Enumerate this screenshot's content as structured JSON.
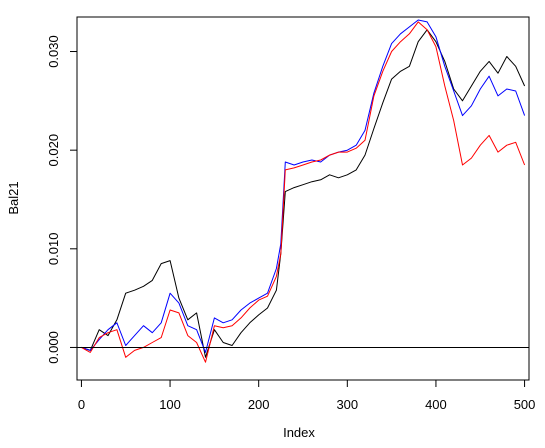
{
  "chart_data": {
    "type": "line",
    "title": "",
    "xlabel": "Index",
    "ylabel": "Bal21",
    "xlim": [
      -5,
      505
    ],
    "ylim": [
      -0.0033,
      0.0335
    ],
    "xticks": [
      0,
      100,
      200,
      300,
      400,
      500
    ],
    "xtick_labels": [
      "0",
      "100",
      "200",
      "300",
      "400",
      "500"
    ],
    "yticks": [
      0.0,
      0.01,
      0.02,
      0.03
    ],
    "ytick_labels": [
      "0.000",
      "0.010",
      "0.020",
      "0.030"
    ],
    "grid": false,
    "legend": "none",
    "reference_line": {
      "y": 0.0,
      "color": "#000000"
    },
    "x": [
      0,
      10,
      20,
      30,
      40,
      50,
      60,
      70,
      80,
      90,
      100,
      110,
      120,
      130,
      140,
      150,
      160,
      170,
      180,
      190,
      200,
      210,
      220,
      225,
      230,
      240,
      250,
      260,
      270,
      280,
      290,
      300,
      310,
      320,
      330,
      340,
      350,
      360,
      370,
      380,
      390,
      400,
      410,
      420,
      430,
      440,
      450,
      460,
      470,
      480,
      490,
      500
    ],
    "series": [
      {
        "color": "#000000",
        "values": [
          0.0,
          -0.0003,
          0.0018,
          0.0012,
          0.0028,
          0.0055,
          0.0058,
          0.0062,
          0.0068,
          0.0085,
          0.0088,
          0.005,
          0.0028,
          0.0035,
          -0.001,
          0.0018,
          0.0005,
          0.0002,
          0.0015,
          0.0025,
          0.0033,
          0.004,
          0.0058,
          0.0095,
          0.0158,
          0.0162,
          0.0165,
          0.0168,
          0.017,
          0.0175,
          0.0172,
          0.0175,
          0.018,
          0.0195,
          0.0222,
          0.0248,
          0.0272,
          0.028,
          0.0285,
          0.031,
          0.0322,
          0.031,
          0.029,
          0.0262,
          0.025,
          0.0265,
          0.028,
          0.029,
          0.0278,
          0.0295,
          0.0285,
          0.0265
        ]
      },
      {
        "color": "#0000ff",
        "values": [
          0.0,
          -0.0003,
          0.0008,
          0.0018,
          0.0025,
          0.0002,
          0.0012,
          0.0022,
          0.0015,
          0.0025,
          0.0055,
          0.0045,
          0.0022,
          0.0018,
          -0.0005,
          0.003,
          0.0025,
          0.0028,
          0.0038,
          0.0045,
          0.005,
          0.0055,
          0.008,
          0.0105,
          0.0188,
          0.0185,
          0.0188,
          0.019,
          0.0188,
          0.0195,
          0.0198,
          0.02,
          0.0205,
          0.022,
          0.0258,
          0.0285,
          0.0308,
          0.0318,
          0.0325,
          0.0332,
          0.033,
          0.0315,
          0.0285,
          0.026,
          0.0235,
          0.0245,
          0.0262,
          0.0275,
          0.0255,
          0.0262,
          0.026,
          0.0235
        ]
      },
      {
        "color": "#ff0000",
        "values": [
          0.0,
          -0.0005,
          0.001,
          0.0015,
          0.0018,
          -0.001,
          -0.0003,
          0.0,
          0.0005,
          0.001,
          0.0038,
          0.0035,
          0.0012,
          0.0005,
          -0.0015,
          0.0022,
          0.002,
          0.0022,
          0.003,
          0.004,
          0.0048,
          0.0052,
          0.0072,
          0.0095,
          0.018,
          0.0182,
          0.0185,
          0.0188,
          0.019,
          0.0195,
          0.0198,
          0.0198,
          0.0202,
          0.021,
          0.0255,
          0.028,
          0.03,
          0.031,
          0.0318,
          0.033,
          0.0322,
          0.0305,
          0.0265,
          0.023,
          0.0185,
          0.0192,
          0.0205,
          0.0215,
          0.0198,
          0.0205,
          0.0208,
          0.0185
        ]
      }
    ]
  }
}
